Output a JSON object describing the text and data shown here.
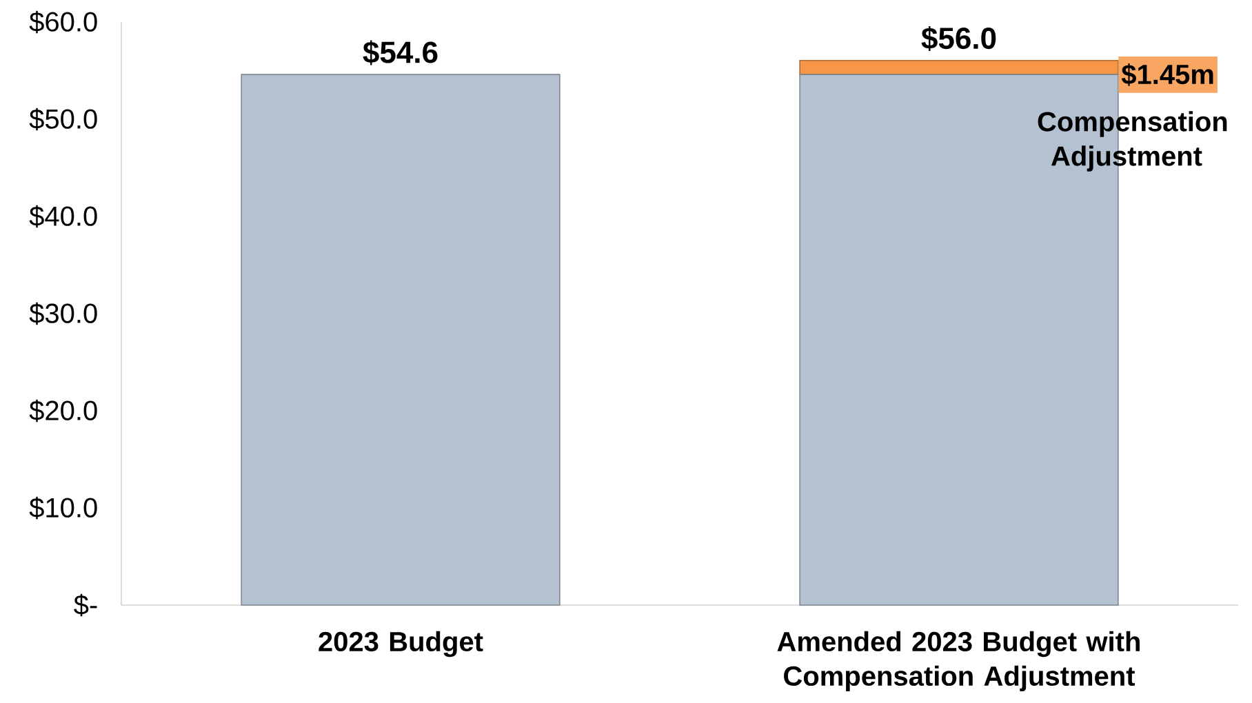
{
  "chart_data": {
    "type": "bar",
    "stacked": true,
    "categories": [
      "2023 Budget",
      "Amended 2023 Budget with Compensation Adjustment"
    ],
    "series": [
      {
        "color": "#b4c1d0",
        "values": [
          54.6,
          54.6
        ]
      },
      {
        "color": "#f79646",
        "values": [
          null,
          1.45
        ]
      }
    ],
    "totals": [
      "$54.6",
      "$56.0"
    ],
    "annotations": [
      "$1.45m",
      "Compensation Adjustment"
    ],
    "ylim": [
      0,
      60
    ],
    "yticks": [
      {
        "value": 0,
        "label": "$-"
      },
      {
        "value": 10,
        "label": "$10.0"
      },
      {
        "value": 20,
        "label": "$20.0"
      },
      {
        "value": 30,
        "label": "$30.0"
      },
      {
        "value": 40,
        "label": "$40.0"
      },
      {
        "value": 50,
        "label": "$50.0"
      },
      {
        "value": 60,
        "label": "$60.0"
      }
    ]
  }
}
